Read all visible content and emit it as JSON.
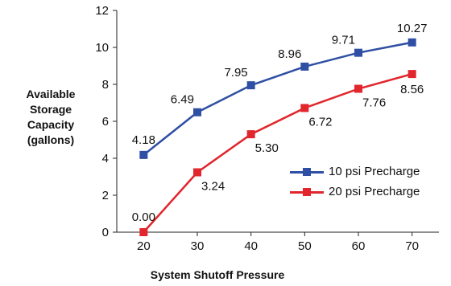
{
  "chart_data": {
    "type": "line",
    "xlabel": "System Shutoff Pressure",
    "ylabel_lines": [
      "Available",
      "Storage",
      "Capacity",
      "(gallons)"
    ],
    "x": [
      20,
      30,
      40,
      50,
      60,
      70
    ],
    "xlim": [
      15,
      75
    ],
    "ylim": [
      0,
      12
    ],
    "yticks": [
      0,
      2,
      4,
      6,
      8,
      10,
      12
    ],
    "grid": false,
    "legend_position": "bottom-right",
    "series": [
      {
        "name": "10 psi Precharge",
        "color": "#2e4fa3",
        "values": [
          4.18,
          6.49,
          7.95,
          8.96,
          9.71,
          10.27
        ],
        "labels": [
          "4.18",
          "6.49",
          "7.95",
          "8.96",
          "9.71",
          "10.27"
        ]
      },
      {
        "name": "20 psi Precharge",
        "color": "#e1262d",
        "values": [
          0.0,
          3.24,
          5.3,
          6.72,
          7.76,
          8.56
        ],
        "labels": [
          "0.00",
          "3.24",
          "5.30",
          "6.72",
          "7.76",
          "8.56"
        ]
      }
    ]
  }
}
